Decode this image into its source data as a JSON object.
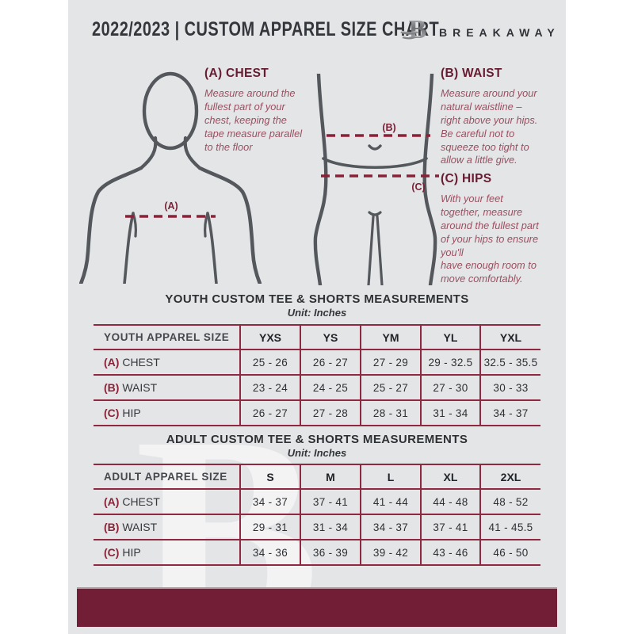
{
  "header": {
    "title": "2022/2023  |  CUSTOM APPAREL SIZE CHART",
    "brand": "BREAKAWAY",
    "logo_icon": "breakaway-b-logo"
  },
  "guide": {
    "chest": {
      "heading": "(A) CHEST",
      "body": "Measure around the\nfullest part of your\nchest, keeping the\ntape measure parallel\nto the floor"
    },
    "waist": {
      "heading": "(B) WAIST",
      "body": "Measure around your\nnatural waistline –\nright above your hips.\nBe careful not to\nsqueeze too tight to\nallow a little give."
    },
    "hips": {
      "heading": "(C) HIPS",
      "body": "With your feet\ntogether, measure\naround the fullest part\nof your hips to ensure\nyou'll\nhave enough room to\nmove comfortably."
    },
    "marker_a": "(A)",
    "marker_b": "(B)",
    "marker_c": "(C)"
  },
  "youth_table": {
    "title": "YOUTH CUSTOM TEE & SHORTS MEASUREMENTS",
    "unit": "Unit: Inches",
    "header": [
      "YOUTH APPAREL SIZE",
      "YXS",
      "YS",
      "YM",
      "YL",
      "YXL"
    ],
    "rows": [
      {
        "prefix": "(A)",
        "label": "CHEST",
        "values": [
          "25 - 26",
          "26 - 27",
          "27 - 29",
          "29 - 32.5",
          "32.5 - 35.5"
        ]
      },
      {
        "prefix": "(B)",
        "label": "WAIST",
        "values": [
          "23 - 24",
          "24 - 25",
          "25 - 27",
          "27 - 30",
          "30 - 33"
        ]
      },
      {
        "prefix": "(C)",
        "label": "HIP",
        "values": [
          "26 - 27",
          "27 - 28",
          "28 - 31",
          "31 - 34",
          "34 - 37"
        ]
      }
    ]
  },
  "adult_table": {
    "title": "ADULT CUSTOM TEE & SHORTS MEASUREMENTS",
    "unit": "Unit: Inches",
    "header": [
      "ADULT APPAREL SIZE",
      "S",
      "M",
      "L",
      "XL",
      "2XL"
    ],
    "rows": [
      {
        "prefix": "(A)",
        "label": "CHEST",
        "values": [
          "34 - 37",
          "37 - 41",
          "41 - 44",
          "44 - 48",
          "48 - 52"
        ]
      },
      {
        "prefix": "(B)",
        "label": "WAIST",
        "values": [
          "29 - 31",
          "31 - 34",
          "34 - 37",
          "37 - 41",
          "41 - 45.5"
        ]
      },
      {
        "prefix": "(C)",
        "label": "HIP",
        "values": [
          "34 - 36",
          "36 - 39",
          "39 - 42",
          "43 - 46",
          "46 - 50"
        ]
      }
    ]
  },
  "watermark_letter": "B",
  "colors": {
    "page_background": "#e4e5e7",
    "maroon_dark": "#671b30",
    "maroon_line": "#8e2941",
    "maroon_text": "#9b4f60",
    "footer_bar": "#731e37",
    "silhouette_gray": "#54585c",
    "title_gray": "#33363a"
  }
}
